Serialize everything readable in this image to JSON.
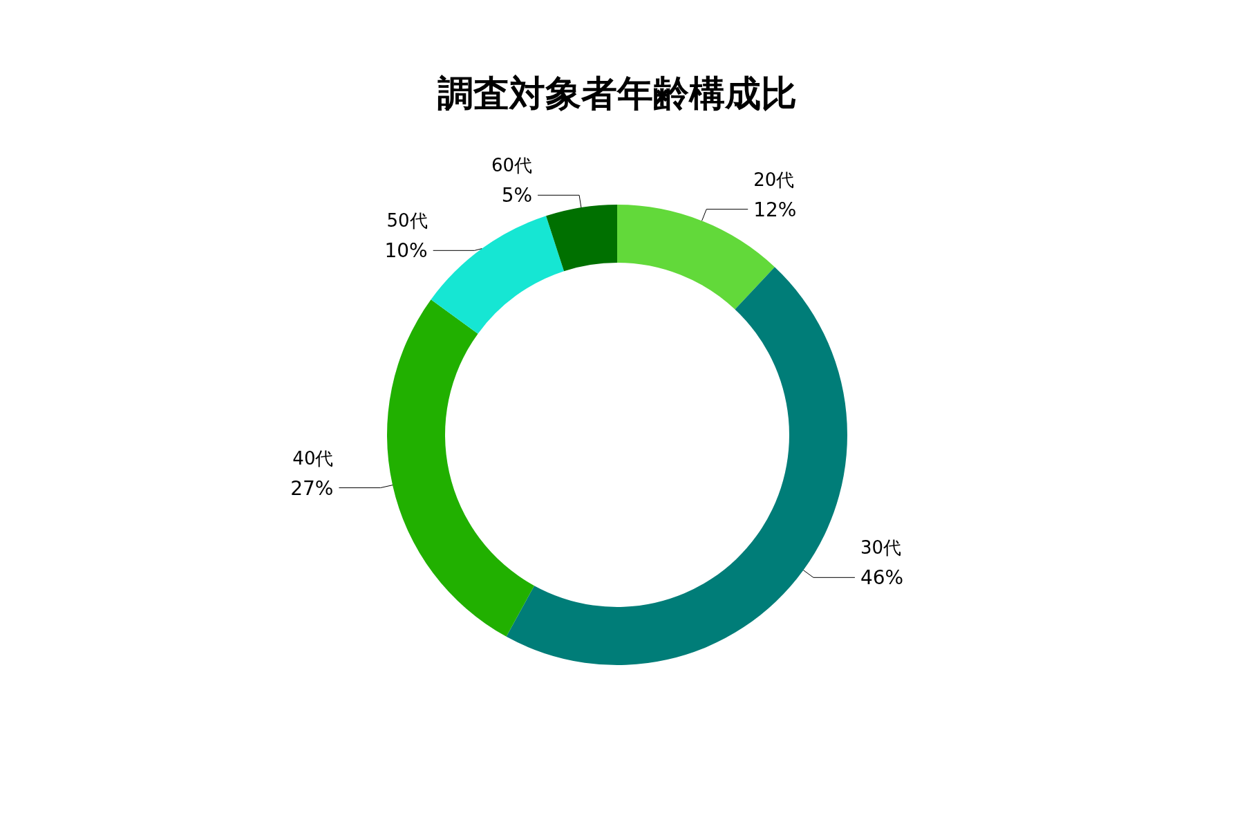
{
  "chart_data": {
    "type": "donut",
    "title": "調査対象者年齢構成比",
    "categories": [
      "20代",
      "30代",
      "40代",
      "50代",
      "60代"
    ],
    "values": [
      12,
      46,
      27,
      10,
      5
    ],
    "colors": [
      "#62d93a",
      "#007d78",
      "#21b000",
      "#16e6d3",
      "#007000"
    ],
    "value_labels": [
      "12%",
      "46%",
      "27%",
      "10%",
      "5%"
    ]
  }
}
